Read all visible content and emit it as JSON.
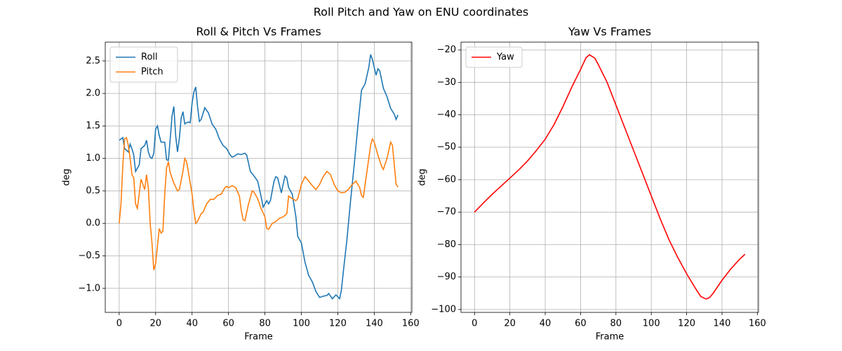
{
  "title": "Roll Pitch and Yaw on ENU coordinates",
  "chart_data": [
    {
      "type": "line",
      "title": "Roll & Pitch Vs Frames",
      "x_label": "Frame",
      "y_label": "deg",
      "xlim": [
        -7.65,
        160.65
      ],
      "xticks": [
        0,
        20,
        40,
        60,
        80,
        100,
        120,
        140,
        160
      ],
      "ylim": [
        -1.37,
        2.79
      ],
      "yticks": [
        {
          "value": -1.0,
          "label": "−1.0"
        },
        {
          "value": -0.5,
          "label": "−0.5"
        },
        {
          "value": 0,
          "label": "0.0"
        },
        0.5,
        {
          "value": 1.0,
          "label": "1.0"
        },
        1.5,
        {
          "value": 2.0,
          "label": "2.0"
        },
        2.5
      ],
      "grid": true,
      "legend": "upper left",
      "series": [
        {
          "name": "Roll",
          "color": "#1f77b4",
          "x": [
            0,
            2,
            3,
            5,
            6,
            7,
            8,
            9,
            11,
            12,
            14,
            15,
            16,
            17,
            18,
            19,
            20,
            21,
            22,
            23,
            25,
            26,
            27,
            28,
            29,
            30,
            31,
            32,
            33,
            34,
            35,
            36,
            37,
            38,
            39,
            40,
            41,
            42,
            43,
            44,
            45,
            47,
            49,
            51,
            53,
            55,
            57,
            59,
            61,
            62,
            63,
            65,
            67,
            69,
            70,
            72,
            74,
            76,
            78,
            79,
            81,
            82,
            83,
            85,
            86,
            87,
            89,
            91,
            92,
            93,
            95,
            97,
            98,
            100,
            102,
            104,
            106,
            108,
            110,
            112,
            114,
            115,
            117,
            118,
            119,
            121,
            122,
            123,
            125,
            127,
            129,
            131,
            133,
            135,
            137,
            138,
            139,
            141,
            142,
            143,
            145,
            147,
            149,
            151,
            152,
            153
          ],
          "values": [
            1.28,
            1.32,
            1.15,
            1.1,
            1.22,
            1.15,
            1.05,
            0.8,
            0.9,
            1.15,
            1.2,
            1.28,
            1.1,
            1.02,
            1.0,
            1.08,
            1.45,
            1.5,
            1.35,
            1.25,
            1.25,
            0.98,
            0.97,
            1.3,
            1.65,
            1.8,
            1.35,
            1.1,
            1.3,
            1.62,
            1.72,
            1.53,
            1.55,
            1.56,
            1.55,
            1.85,
            2.02,
            2.1,
            1.8,
            1.57,
            1.6,
            1.78,
            1.7,
            1.53,
            1.45,
            1.3,
            1.2,
            1.15,
            1.05,
            1.02,
            1.03,
            1.07,
            1.06,
            1.08,
            1.05,
            0.8,
            0.73,
            0.65,
            0.4,
            0.25,
            0.35,
            0.3,
            0.35,
            0.65,
            0.72,
            0.7,
            0.47,
            0.73,
            0.7,
            0.55,
            0.45,
            0.1,
            -0.2,
            -0.3,
            -0.6,
            -0.8,
            -0.9,
            -1.05,
            -1.14,
            -1.12,
            -1.11,
            -1.08,
            -1.16,
            -1.13,
            -1.1,
            -1.16,
            -1.02,
            -0.75,
            -0.25,
            0.35,
            0.9,
            1.5,
            2.05,
            2.15,
            2.4,
            2.6,
            2.52,
            2.28,
            2.38,
            2.35,
            2.08,
            1.95,
            1.77,
            1.68,
            1.6,
            1.67
          ]
        },
        {
          "name": "Pitch",
          "color": "#ff7f0e",
          "x": [
            0,
            1,
            2,
            3,
            4,
            5,
            6,
            7,
            8,
            9,
            10,
            12,
            14,
            15,
            16,
            17,
            18,
            19,
            20,
            22,
            23,
            24,
            25,
            26,
            27,
            28,
            30,
            32,
            33,
            35,
            36,
            37,
            39,
            40,
            41,
            42,
            43,
            45,
            46,
            48,
            50,
            52,
            54,
            56,
            58,
            59,
            60,
            62,
            64,
            66,
            67,
            68,
            69,
            71,
            73,
            74,
            76,
            78,
            80,
            81,
            82,
            84,
            86,
            88,
            90,
            92,
            93,
            95,
            97,
            98,
            100,
            102,
            104,
            106,
            108,
            110,
            112,
            114,
            116,
            118,
            120,
            122,
            124,
            126,
            128,
            130,
            132,
            133,
            134,
            136,
            138,
            139,
            140,
            142,
            144,
            145,
            147,
            149,
            150,
            152,
            153
          ],
          "values": [
            0.0,
            0.3,
            0.9,
            1.3,
            1.32,
            1.2,
            1.0,
            0.75,
            0.7,
            0.3,
            0.23,
            0.68,
            0.52,
            0.75,
            0.55,
            0.0,
            -0.3,
            -0.72,
            -0.62,
            -0.08,
            -0.15,
            -0.12,
            0.45,
            0.85,
            0.95,
            0.78,
            0.62,
            0.5,
            0.52,
            0.8,
            1.0,
            0.95,
            0.62,
            0.45,
            0.2,
            0.0,
            0.03,
            0.15,
            0.17,
            0.3,
            0.37,
            0.37,
            0.43,
            0.45,
            0.55,
            0.57,
            0.55,
            0.58,
            0.55,
            0.42,
            0.2,
            0.06,
            0.04,
            0.3,
            0.5,
            0.48,
            0.38,
            0.22,
            0.1,
            -0.08,
            -0.09,
            0.0,
            0.03,
            0.08,
            0.1,
            0.15,
            0.42,
            0.38,
            0.35,
            0.38,
            0.6,
            0.72,
            0.65,
            0.58,
            0.52,
            0.6,
            0.72,
            0.8,
            0.75,
            0.6,
            0.5,
            0.47,
            0.48,
            0.53,
            0.6,
            0.65,
            0.55,
            0.43,
            0.4,
            0.8,
            1.2,
            1.3,
            1.25,
            1.05,
            0.88,
            0.83,
            1.0,
            1.25,
            1.2,
            0.6,
            0.56
          ]
        }
      ]
    },
    {
      "type": "line",
      "title": "Yaw Vs Frames",
      "x_label": "Frame",
      "y_label": "deg",
      "xlim": [
        -7.65,
        160.65
      ],
      "xticks": [
        0,
        20,
        40,
        60,
        80,
        100,
        120,
        140,
        160
      ],
      "ylim": [
        -100.9,
        -17.6
      ],
      "yticks": [
        {
          "value": -100,
          "label": "−100"
        },
        {
          "value": -90,
          "label": "−90"
        },
        {
          "value": -80,
          "label": "−80"
        },
        {
          "value": -70,
          "label": "−70"
        },
        {
          "value": -60,
          "label": "−60"
        },
        {
          "value": -50,
          "label": "−50"
        },
        {
          "value": -40,
          "label": "−40"
        },
        {
          "value": -30,
          "label": "−30"
        },
        {
          "value": -20,
          "label": "−20"
        }
      ],
      "grid": true,
      "legend": "upper left",
      "series": [
        {
          "name": "Yaw",
          "color": "#ff0000",
          "x": [
            0,
            5,
            10,
            15,
            20,
            25,
            30,
            35,
            40,
            45,
            50,
            55,
            60,
            63,
            65,
            68,
            70,
            75,
            80,
            85,
            90,
            95,
            100,
            105,
            110,
            115,
            120,
            125,
            128,
            131,
            133,
            135,
            140,
            145,
            150,
            153
          ],
          "values": [
            -70,
            -67.2,
            -64.5,
            -62,
            -59.5,
            -57,
            -54.2,
            -51,
            -47.5,
            -43,
            -37.5,
            -31.5,
            -26,
            -22.5,
            -21.5,
            -22.5,
            -24.5,
            -30,
            -37,
            -44,
            -51,
            -58,
            -65,
            -72,
            -78.5,
            -84,
            -89,
            -93.5,
            -96,
            -96.8,
            -96.3,
            -95,
            -91,
            -87.5,
            -84.5,
            -83
          ]
        }
      ]
    }
  ]
}
